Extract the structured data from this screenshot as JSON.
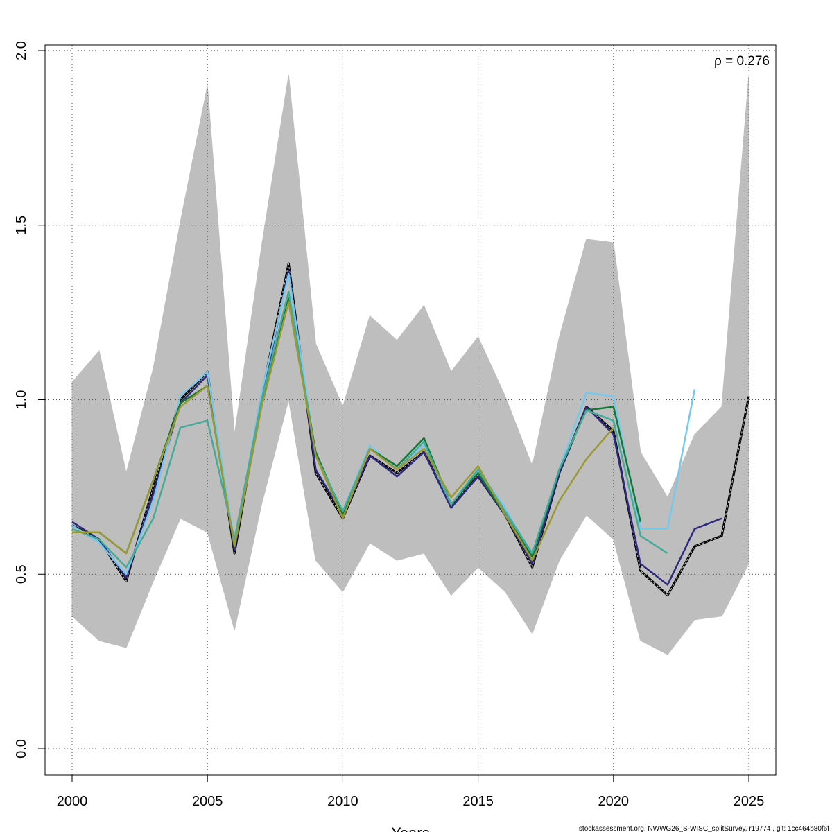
{
  "chart_data": {
    "type": "line",
    "title": "",
    "xlabel": "Years",
    "ylabel": "",
    "xlim": [
      2000,
      2025
    ],
    "ylim": [
      0.0,
      2.0
    ],
    "x_ticks": [
      2000,
      2005,
      2010,
      2015,
      2020,
      2025
    ],
    "y_ticks": [
      0.0,
      0.5,
      1.0,
      1.5,
      2.0
    ],
    "x_tick_labels": [
      "2000",
      "2005",
      "2010",
      "2015",
      "2020",
      "2025"
    ],
    "y_tick_labels": [
      "0.0",
      "0.5",
      "1.0",
      "1.5",
      "2.0"
    ],
    "grid": true,
    "annotation": "ρ = 0.276",
    "confidence_band": {
      "color": "#bebebe",
      "x": [
        2000,
        2001,
        2002,
        2003,
        2004,
        2005,
        2006,
        2007,
        2008,
        2009,
        2010,
        2011,
        2012,
        2013,
        2014,
        2015,
        2016,
        2017,
        2018,
        2019,
        2020,
        2021,
        2022,
        2023,
        2024,
        2025
      ],
      "upper": [
        1.05,
        1.14,
        0.79,
        1.09,
        1.51,
        1.9,
        0.9,
        1.44,
        1.93,
        1.16,
        0.98,
        1.24,
        1.17,
        1.27,
        1.08,
        1.18,
        1.01,
        0.81,
        1.18,
        1.46,
        1.45,
        0.85,
        0.72,
        0.9,
        0.98,
        1.93
      ],
      "lower": [
        0.38,
        0.31,
        0.29,
        0.48,
        0.66,
        0.62,
        0.34,
        0.7,
        1.0,
        0.54,
        0.45,
        0.59,
        0.54,
        0.56,
        0.44,
        0.52,
        0.45,
        0.33,
        0.54,
        0.67,
        0.6,
        0.31,
        0.27,
        0.37,
        0.38,
        0.53
      ]
    },
    "series": [
      {
        "color": "#444444",
        "dashed": true,
        "start": 2000,
        "values": [
          0.64,
          0.6,
          0.48,
          0.75,
          1.0,
          1.08,
          0.56,
          1.01,
          1.39,
          0.79,
          0.66,
          0.84,
          0.79,
          0.85,
          0.7,
          0.78,
          0.67,
          0.52,
          0.79,
          0.98,
          0.91,
          0.51,
          0.44,
          0.58,
          0.61,
          1.01
        ]
      },
      {
        "color": "#2e2a80",
        "dashed": false,
        "start": 2000,
        "values": [
          0.65,
          0.6,
          0.49,
          0.73,
          0.99,
          1.07,
          0.57,
          1.0,
          1.37,
          0.8,
          0.67,
          0.84,
          0.78,
          0.85,
          0.69,
          0.78,
          0.67,
          0.53,
          0.79,
          0.98,
          0.9,
          0.53,
          0.47,
          0.63,
          0.66
        ]
      },
      {
        "color": "#76c8ec",
        "dashed": false,
        "start": 2000,
        "values": [
          0.64,
          0.59,
          0.5,
          0.71,
          1.01,
          1.08,
          0.59,
          1.02,
          1.36,
          0.84,
          0.68,
          0.87,
          0.8,
          0.87,
          0.7,
          0.8,
          0.69,
          0.55,
          0.8,
          1.02,
          1.01,
          0.63,
          0.63,
          1.03
        ]
      },
      {
        "color": "#117733",
        "dashed": false,
        "start": 2000,
        "values": [
          0.62,
          0.62,
          0.56,
          0.77,
          0.99,
          1.04,
          0.58,
          0.99,
          1.29,
          0.85,
          0.67,
          0.86,
          0.81,
          0.89,
          0.7,
          0.79,
          0.67,
          0.55,
          0.8,
          0.97,
          0.98,
          0.65
        ]
      },
      {
        "color": "#44aa99",
        "dashed": false,
        "start": 2000,
        "values": [
          0.63,
          0.6,
          0.52,
          0.66,
          0.92,
          0.94,
          0.6,
          1.0,
          1.31,
          0.84,
          0.68,
          0.86,
          0.8,
          0.88,
          0.7,
          0.8,
          0.68,
          0.56,
          0.8,
          0.97,
          0.94,
          0.61,
          0.56
        ]
      },
      {
        "color": "#999933",
        "dashed": false,
        "start": 2000,
        "values": [
          0.62,
          0.62,
          0.56,
          0.77,
          0.98,
          1.04,
          0.58,
          0.98,
          1.28,
          0.84,
          0.66,
          0.86,
          0.8,
          0.86,
          0.72,
          0.81,
          0.67,
          0.54,
          0.71,
          0.83,
          0.92
        ]
      }
    ]
  },
  "footer_text": "stockassessment.org, NWWG26_S-WISC_splitSurvey, r19774 , git: 1cc464b80f6f"
}
